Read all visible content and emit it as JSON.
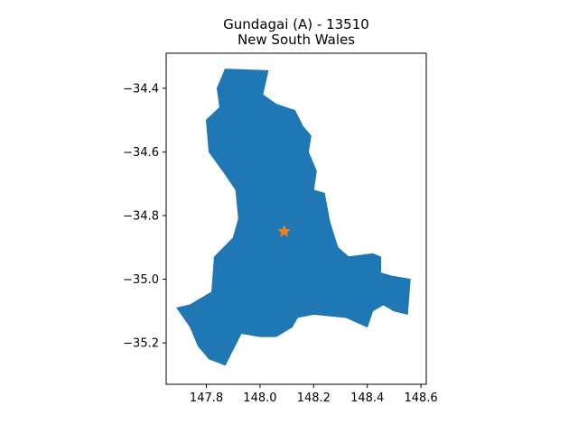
{
  "title": {
    "line1": "Gundagai (A) - 13510",
    "line2": "New South Wales"
  },
  "colors": {
    "region_fill": "#1f77b4",
    "marker": "#ff7f0e",
    "axes": "#000000",
    "background": "#ffffff"
  },
  "chart_data": {
    "type": "map",
    "xlim": [
      147.65,
      148.62
    ],
    "ylim": [
      -35.33,
      -34.29
    ],
    "x_ticks": [
      147.8,
      148.0,
      148.2,
      148.4,
      148.6
    ],
    "x_tick_labels": [
      "147.8",
      "148.0",
      "148.2",
      "148.4",
      "148.6"
    ],
    "y_ticks": [
      -34.4,
      -34.6,
      -34.8,
      -35.0,
      -35.2
    ],
    "y_tick_labels": [
      "−34.4",
      "−34.6",
      "−34.8",
      "−35.0",
      "−35.2"
    ],
    "marker": {
      "shape": "star",
      "lon": 148.09,
      "lat": -34.85
    },
    "region": {
      "shape": "polygon",
      "outline": [
        [
          147.87,
          -34.34
        ],
        [
          148.03,
          -34.345
        ],
        [
          148.01,
          -34.42
        ],
        [
          148.06,
          -34.45
        ],
        [
          148.13,
          -34.47
        ],
        [
          148.16,
          -34.52
        ],
        [
          148.19,
          -34.55
        ],
        [
          148.18,
          -34.6
        ],
        [
          148.21,
          -34.66
        ],
        [
          148.2,
          -34.72
        ],
        [
          148.24,
          -34.73
        ],
        [
          148.26,
          -34.82
        ],
        [
          148.29,
          -34.9
        ],
        [
          148.33,
          -34.93
        ],
        [
          148.42,
          -34.92
        ],
        [
          148.45,
          -34.93
        ],
        [
          148.45,
          -34.98
        ],
        [
          148.49,
          -34.99
        ],
        [
          148.56,
          -35.0
        ],
        [
          148.55,
          -35.11
        ],
        [
          148.5,
          -35.1
        ],
        [
          148.46,
          -35.08
        ],
        [
          148.42,
          -35.1
        ],
        [
          148.4,
          -35.15
        ],
        [
          148.32,
          -35.12
        ],
        [
          148.2,
          -35.11
        ],
        [
          148.14,
          -35.12
        ],
        [
          148.12,
          -35.15
        ],
        [
          148.06,
          -35.18
        ],
        [
          148.0,
          -35.18
        ],
        [
          147.93,
          -35.17
        ],
        [
          147.9,
          -35.22
        ],
        [
          147.87,
          -35.27
        ],
        [
          147.81,
          -35.25
        ],
        [
          147.77,
          -35.21
        ],
        [
          147.74,
          -35.15
        ],
        [
          147.69,
          -35.09
        ],
        [
          147.74,
          -35.08
        ],
        [
          147.82,
          -35.04
        ],
        [
          147.83,
          -34.93
        ],
        [
          147.9,
          -34.87
        ],
        [
          147.92,
          -34.81
        ],
        [
          147.91,
          -34.72
        ],
        [
          147.87,
          -34.67
        ],
        [
          147.81,
          -34.6
        ],
        [
          147.8,
          -34.5
        ],
        [
          147.85,
          -34.46
        ],
        [
          147.84,
          -34.4
        ],
        [
          147.86,
          -34.36
        ]
      ]
    }
  }
}
